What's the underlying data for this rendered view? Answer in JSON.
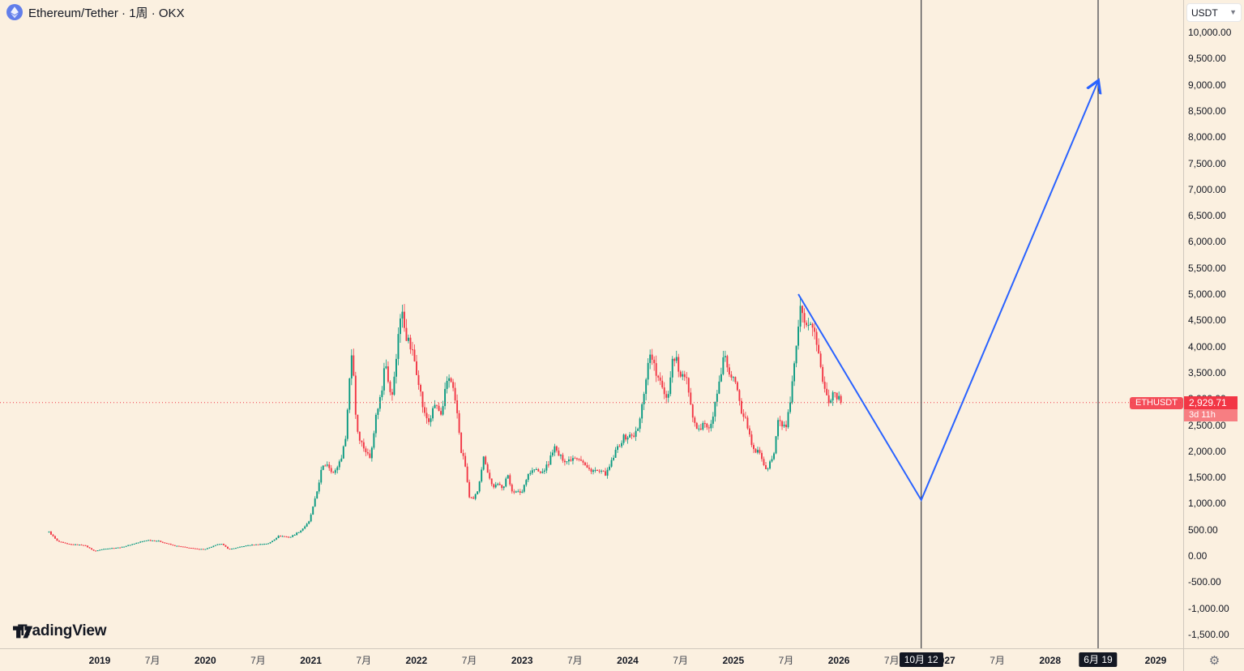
{
  "header": {
    "symbol_title": "Ethereum/Tether · 1周 · OKX"
  },
  "currency_selector": {
    "value": "USDT"
  },
  "price_label": {
    "symbol": "ETHUSDT",
    "price": "2,929.71",
    "countdown": "3d 11h"
  },
  "logo": {
    "text": "TradingView"
  },
  "chart_data": {
    "type": "candlestick",
    "symbol": "ETHUSDT",
    "exchange": "OKX",
    "interval": "1周",
    "title": "Ethereum/Tether · 1周 · OKX",
    "current_price": 2929.71,
    "y_axis": {
      "min": -1500,
      "max": 10000,
      "step": 500,
      "ticks": [
        10000,
        9500,
        9000,
        8500,
        8000,
        7500,
        7000,
        6500,
        6000,
        5500,
        5000,
        4500,
        4000,
        3500,
        3000,
        2500,
        2000,
        1500,
        1000,
        500,
        0,
        -500,
        -1000,
        -1500
      ]
    },
    "x_axis": {
      "view_start": 2018.4,
      "view_end": 2029.35,
      "data_start": 2018.52,
      "data_end": 2026.03
    },
    "time_ticks": [
      {
        "label": "2019",
        "t": 2019,
        "major": true
      },
      {
        "label": "7月",
        "t": 2019.5,
        "major": false
      },
      {
        "label": "2020",
        "t": 2020,
        "major": true
      },
      {
        "label": "7月",
        "t": 2020.5,
        "major": false
      },
      {
        "label": "2021",
        "t": 2021,
        "major": true
      },
      {
        "label": "7月",
        "t": 2021.5,
        "major": false
      },
      {
        "label": "2022",
        "t": 2022,
        "major": true
      },
      {
        "label": "7月",
        "t": 2022.5,
        "major": false
      },
      {
        "label": "2023",
        "t": 2023,
        "major": true
      },
      {
        "label": "7月",
        "t": 2023.5,
        "major": false
      },
      {
        "label": "2024",
        "t": 2024,
        "major": true
      },
      {
        "label": "7月",
        "t": 2024.5,
        "major": false
      },
      {
        "label": "2025",
        "t": 2025,
        "major": true
      },
      {
        "label": "7月",
        "t": 2025.5,
        "major": false
      },
      {
        "label": "2026",
        "t": 2026,
        "major": true
      },
      {
        "label": "7月",
        "t": 2026.5,
        "major": false
      },
      {
        "label": "2027",
        "t": 2027,
        "major": true
      },
      {
        "label": "7月",
        "t": 2027.5,
        "major": false
      },
      {
        "label": "2028",
        "t": 2028,
        "major": true
      },
      {
        "label": "7月",
        "t": 2028.5,
        "major": false
      },
      {
        "label": "2029",
        "t": 2029,
        "major": true
      }
    ],
    "event_lines": [
      {
        "label": "10月 12",
        "t": 2026.78
      },
      {
        "label": "6月 19",
        "t": 2028.455
      }
    ],
    "trend_arrow_points": [
      {
        "t": 2025.616,
        "price": 5000
      },
      {
        "t": 2026.78,
        "price": 1068
      },
      {
        "t": 2028.455,
        "price": 9070
      }
    ],
    "weekly_close_anchors": [
      [
        2018.52,
        460
      ],
      [
        2018.6,
        280
      ],
      [
        2018.7,
        225
      ],
      [
        2018.85,
        210
      ],
      [
        2018.95,
        95
      ],
      [
        2019.05,
        140
      ],
      [
        2019.2,
        165
      ],
      [
        2019.45,
        305
      ],
      [
        2019.55,
        290
      ],
      [
        2019.7,
        200
      ],
      [
        2019.9,
        140
      ],
      [
        2020.0,
        130
      ],
      [
        2020.15,
        245
      ],
      [
        2020.22,
        125
      ],
      [
        2020.4,
        205
      ],
      [
        2020.6,
        240
      ],
      [
        2020.7,
        390
      ],
      [
        2020.8,
        355
      ],
      [
        2020.9,
        480
      ],
      [
        2020.98,
        640
      ],
      [
        2021.05,
        1150
      ],
      [
        2021.1,
        1650
      ],
      [
        2021.15,
        1780
      ],
      [
        2021.22,
        1560
      ],
      [
        2021.3,
        1950
      ],
      [
        2021.33,
        2320
      ],
      [
        2021.36,
        3150
      ],
      [
        2021.38,
        3950
      ],
      [
        2021.4,
        3650
      ],
      [
        2021.43,
        2480
      ],
      [
        2021.47,
        2200
      ],
      [
        2021.52,
        2000
      ],
      [
        2021.56,
        1870
      ],
      [
        2021.62,
        2720
      ],
      [
        2021.68,
        3230
      ],
      [
        2021.7,
        3880
      ],
      [
        2021.73,
        3420
      ],
      [
        2021.76,
        2950
      ],
      [
        2021.8,
        3550
      ],
      [
        2021.83,
        4350
      ],
      [
        2021.86,
        4680
      ],
      [
        2021.9,
        4220
      ],
      [
        2021.93,
        4050
      ],
      [
        2021.97,
        3830
      ],
      [
        2022.02,
        3350
      ],
      [
        2022.07,
        2720
      ],
      [
        2022.12,
        2560
      ],
      [
        2022.18,
        2920
      ],
      [
        2022.24,
        2620
      ],
      [
        2022.28,
        3300
      ],
      [
        2022.32,
        3460
      ],
      [
        2022.38,
        2820
      ],
      [
        2022.42,
        2020
      ],
      [
        2022.46,
        1760
      ],
      [
        2022.5,
        1110
      ],
      [
        2022.54,
        1075
      ],
      [
        2022.58,
        1260
      ],
      [
        2022.62,
        1720
      ],
      [
        2022.64,
        1920
      ],
      [
        2022.68,
        1560
      ],
      [
        2022.72,
        1320
      ],
      [
        2022.78,
        1360
      ],
      [
        2022.82,
        1310
      ],
      [
        2022.86,
        1560
      ],
      [
        2022.9,
        1260
      ],
      [
        2022.95,
        1210
      ],
      [
        2023.0,
        1225
      ],
      [
        2023.05,
        1560
      ],
      [
        2023.12,
        1660
      ],
      [
        2023.18,
        1570
      ],
      [
        2023.25,
        1760
      ],
      [
        2023.3,
        2090
      ],
      [
        2023.35,
        1910
      ],
      [
        2023.42,
        1810
      ],
      [
        2023.5,
        1900
      ],
      [
        2023.55,
        1865
      ],
      [
        2023.62,
        1660
      ],
      [
        2023.68,
        1635
      ],
      [
        2023.75,
        1595
      ],
      [
        2023.8,
        1565
      ],
      [
        2023.85,
        1810
      ],
      [
        2023.9,
        2060
      ],
      [
        2023.96,
        2260
      ],
      [
        2024.02,
        2290
      ],
      [
        2024.06,
        2310
      ],
      [
        2024.1,
        2420
      ],
      [
        2024.14,
        2920
      ],
      [
        2024.18,
        3520
      ],
      [
        2024.22,
        3940
      ],
      [
        2024.26,
        3520
      ],
      [
        2024.3,
        3320
      ],
      [
        2024.34,
        3160
      ],
      [
        2024.38,
        3010
      ],
      [
        2024.42,
        3760
      ],
      [
        2024.46,
        3810
      ],
      [
        2024.5,
        3420
      ],
      [
        2024.54,
        3460
      ],
      [
        2024.58,
        3160
      ],
      [
        2024.61,
        2620
      ],
      [
        2024.64,
        2460
      ],
      [
        2024.68,
        2360
      ],
      [
        2024.72,
        2660
      ],
      [
        2024.76,
        2420
      ],
      [
        2024.8,
        2520
      ],
      [
        2024.84,
        3120
      ],
      [
        2024.88,
        3360
      ],
      [
        2024.92,
        3920
      ],
      [
        2024.96,
        3420
      ],
      [
        2025.0,
        3360
      ],
      [
        2025.04,
        3210
      ],
      [
        2025.08,
        2760
      ],
      [
        2025.12,
        2660
      ],
      [
        2025.16,
        2210
      ],
      [
        2025.2,
        1960
      ],
      [
        2025.24,
        2060
      ],
      [
        2025.28,
        1810
      ],
      [
        2025.31,
        1610
      ],
      [
        2025.35,
        1810
      ],
      [
        2025.38,
        1860
      ],
      [
        2025.42,
        2560
      ],
      [
        2025.46,
        2510
      ],
      [
        2025.5,
        2460
      ],
      [
        2025.54,
        2910
      ],
      [
        2025.58,
        3660
      ],
      [
        2025.61,
        4260
      ],
      [
        2025.64,
        4750
      ],
      [
        2025.67,
        4360
      ],
      [
        2025.7,
        4310
      ],
      [
        2025.73,
        4510
      ],
      [
        2025.76,
        4360
      ],
      [
        2025.8,
        3960
      ],
      [
        2025.84,
        3410
      ],
      [
        2025.87,
        3160
      ],
      [
        2025.9,
        2960
      ],
      [
        2025.93,
        3060
      ],
      [
        2025.96,
        3160
      ],
      [
        2026.0,
        2985
      ],
      [
        2026.03,
        2929.71
      ]
    ],
    "colors": {
      "background": "#fbf0e0",
      "up": "#089981",
      "down": "#f23645",
      "price_line": "#f23645",
      "trend_arrow": "#2962ff",
      "event_line": "#131722",
      "badge_bg": "#131722",
      "tag_bg": "#f23645",
      "tag_countdown_bg": "#f77e82"
    }
  }
}
